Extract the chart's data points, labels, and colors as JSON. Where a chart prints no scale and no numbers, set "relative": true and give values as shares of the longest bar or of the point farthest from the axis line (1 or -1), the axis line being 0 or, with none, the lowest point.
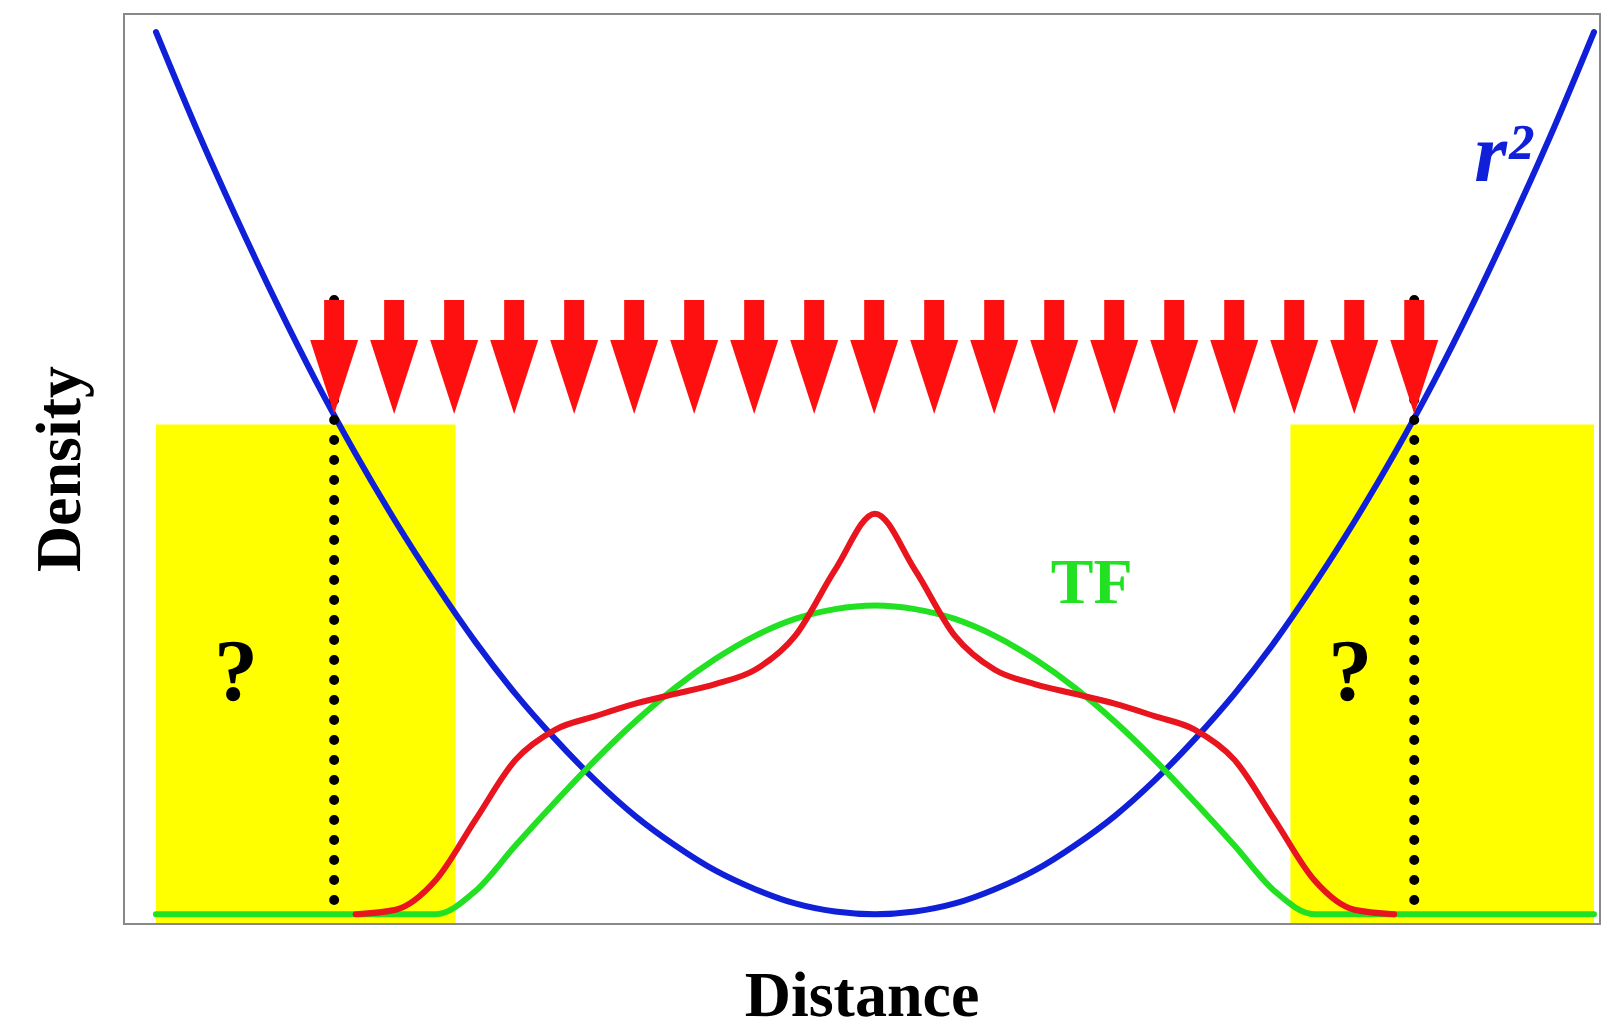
{
  "chart_data": {
    "type": "line",
    "relative": true,
    "xlabel": "Distance",
    "ylabel": "Density",
    "categories": [
      null,
      null,
      null,
      null,
      null,
      null,
      null,
      null,
      null,
      null,
      null,
      null,
      null,
      null,
      null,
      null,
      null,
      null,
      null,
      null,
      null,
      null,
      null,
      null,
      null,
      null,
      null,
      null,
      null,
      null,
      null,
      null,
      null,
      null,
      null,
      null,
      null
    ],
    "series": [
      {
        "name": "r²",
        "color": "#1020d8",
        "values": [
          1,
          0.893,
          0.793,
          0.698,
          0.609,
          0.527,
          0.451,
          0.381,
          0.316,
          0.258,
          0.207,
          0.161,
          0.121,
          0.088,
          0.06,
          0.039,
          0.023,
          0.014,
          0.011,
          0.014,
          0.023,
          0.039,
          0.06,
          0.088,
          0.121,
          0.161,
          0.207,
          0.258,
          0.316,
          0.381,
          0.451,
          0.527,
          0.609,
          0.698,
          0.793,
          0.893,
          1
        ]
      },
      {
        "name": "TF",
        "color": "#22e022",
        "values": [
          0.011,
          0.011,
          0.011,
          0.011,
          0.011,
          0.011,
          0.011,
          0.011,
          0.037,
          0.088,
          0.137,
          0.184,
          0.227,
          0.265,
          0.297,
          0.323,
          0.342,
          0.353,
          0.357,
          0.353,
          0.342,
          0.323,
          0.297,
          0.265,
          0.227,
          0.184,
          0.137,
          0.088,
          0.037,
          0.011,
          0.011,
          0.011,
          0.011,
          0.011,
          0.011,
          0.011,
          0.011
        ]
      },
      {
        "color": "#e8141e",
        "values": [
          null,
          null,
          null,
          null,
          null,
          0.011,
          0.016,
          0.049,
          0.117,
          0.184,
          0.218,
          0.233,
          0.247,
          0.258,
          0.269,
          0.285,
          0.323,
          0.397,
          0.46,
          0.397,
          0.323,
          0.285,
          0.269,
          0.258,
          0.247,
          0.233,
          0.218,
          0.184,
          0.117,
          0.049,
          0.016,
          0.011,
          null,
          null,
          null,
          null,
          null
        ]
      }
    ],
    "annotations": [
      "?",
      "?"
    ]
  }
}
